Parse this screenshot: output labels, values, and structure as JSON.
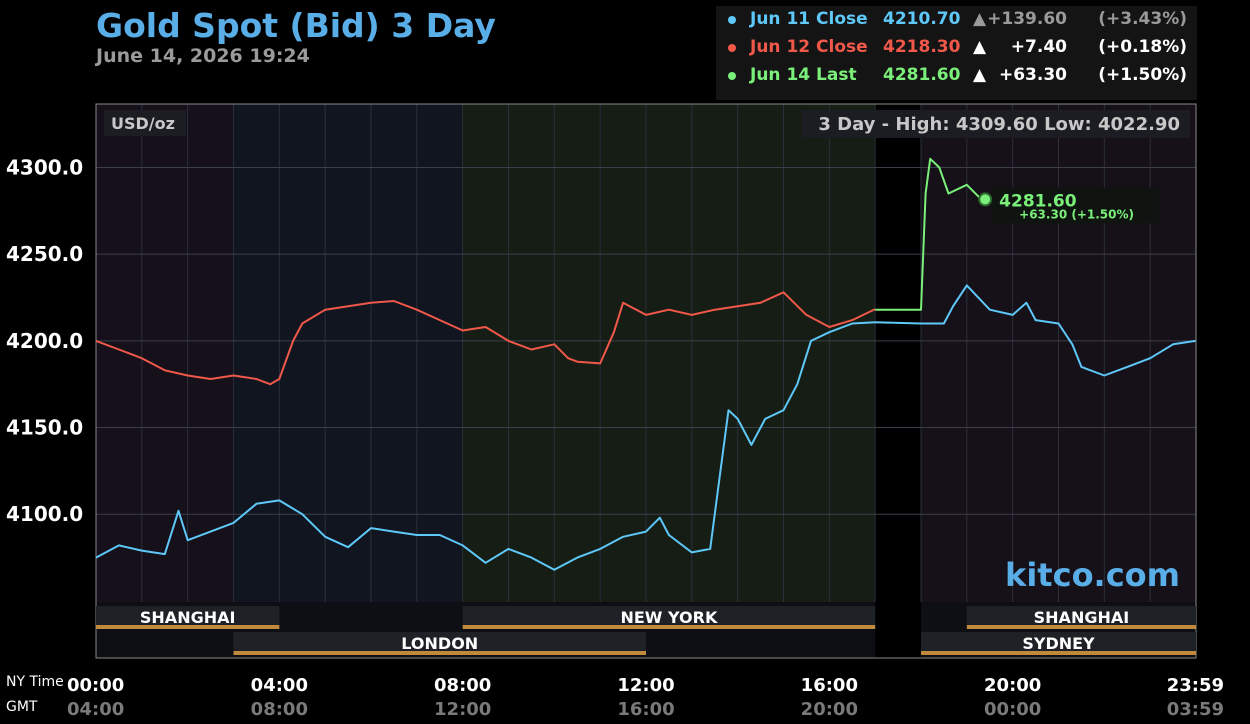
{
  "title": "Gold Spot (Bid) 3 Day",
  "timestamp": "June 14, 2026 19:24",
  "legend": [
    {
      "label": "Jun 11 Close",
      "value": "4210.70",
      "arrow": "▲",
      "change": "+139.60",
      "pct": "(+3.43%)",
      "color": "#5ec8f8",
      "change_color": "#9a9a9a"
    },
    {
      "label": "Jun 12 Close",
      "value": "4218.30",
      "arrow": "▲",
      "change": "+7.40",
      "pct": "(+0.18%)",
      "color": "#f0584a",
      "change_color": "#ffffff"
    },
    {
      "label": "Jun 14 Last",
      "value": "4281.60",
      "arrow": "▲",
      "change": "+63.30",
      "pct": "(+1.50%)",
      "color": "#7af07a",
      "change_color": "#ffffff"
    }
  ],
  "unit_label": "USD/oz",
  "range_label": "3 Day - High: 4309.60  Low: 4022.90",
  "brand": "kitco.com",
  "last_callout": {
    "value": "4281.60",
    "change": "+63.30 (+1.50%)"
  },
  "x_axis": {
    "row_labels": [
      "NY Time",
      "GMT"
    ],
    "ny_ticks": [
      "00:00",
      "04:00",
      "08:00",
      "12:00",
      "16:00",
      "20:00",
      "23:59"
    ],
    "gmt_ticks": [
      "04:00",
      "08:00",
      "12:00",
      "16:00",
      "20:00",
      "00:00",
      "03:59"
    ]
  },
  "sessions": [
    {
      "name": "SHANGHAI",
      "start": 0,
      "end": 4,
      "row": 1
    },
    {
      "name": "LONDON",
      "start": 3,
      "end": 12,
      "row": 2
    },
    {
      "name": "NEW YORK",
      "start": 8,
      "end": 17,
      "row": 1
    },
    {
      "name": "SHANGHAI",
      "start": 19,
      "end": 24,
      "row": 1
    },
    {
      "name": "SYDNEY",
      "start": 18,
      "end": 24,
      "row": 2
    }
  ],
  "chart_data": {
    "type": "line",
    "title": "Gold Spot (Bid) 3 Day",
    "xlabel": "NY Time",
    "ylabel": "USD/oz",
    "xlim": [
      0,
      24
    ],
    "ylim": [
      4050,
      4335
    ],
    "y_ticks": [
      4100,
      4150,
      4200,
      4250,
      4300
    ],
    "grid": true,
    "legend_position": "top-right",
    "series": [
      {
        "name": "Jun 11 Close",
        "color": "#5ec8f8",
        "x": [
          0.0,
          0.5,
          1.0,
          1.5,
          1.8,
          2.0,
          2.5,
          3.0,
          3.5,
          4.0,
          4.5,
          5.0,
          5.5,
          6.0,
          6.5,
          7.0,
          7.5,
          8.0,
          8.5,
          9.0,
          9.5,
          10.0,
          10.5,
          11.0,
          11.5,
          12.0,
          12.3,
          12.5,
          13.0,
          13.4,
          13.6,
          13.8,
          14.0,
          14.3,
          14.6,
          15.0,
          15.3,
          15.6,
          16.0,
          16.5,
          17.0,
          18.0,
          18.5,
          18.7,
          19.0,
          19.5,
          20.0,
          20.3,
          20.5,
          21.0,
          21.3,
          21.5,
          22.0,
          22.5,
          23.0,
          23.5,
          23.99
        ],
        "values": [
          4075,
          4082,
          4079,
          4077,
          4102,
          4085,
          4090,
          4095,
          4106,
          4108,
          4100,
          4087,
          4081,
          4092,
          4090,
          4088,
          4088,
          4082,
          4072,
          4080,
          4075,
          4068,
          4075,
          4080,
          4087,
          4090,
          4098,
          4088,
          4078,
          4080,
          4120,
          4160,
          4155,
          4140,
          4155,
          4160,
          4175,
          4200,
          4205,
          4210,
          4210.7,
          4210,
          4210,
          4220,
          4232,
          4218,
          4215,
          4222,
          4212,
          4210,
          4198,
          4185,
          4180,
          4185,
          4190,
          4198,
          4200
        ]
      },
      {
        "name": "Jun 12 Close",
        "color": "#f0584a",
        "x": [
          0.0,
          0.5,
          1.0,
          1.5,
          2.0,
          2.5,
          3.0,
          3.5,
          3.8,
          4.0,
          4.3,
          4.5,
          5.0,
          5.5,
          6.0,
          6.5,
          7.0,
          7.5,
          8.0,
          8.5,
          9.0,
          9.5,
          10.0,
          10.3,
          10.5,
          11.0,
          11.3,
          11.5,
          12.0,
          12.5,
          13.0,
          13.5,
          14.0,
          14.5,
          15.0,
          15.5,
          16.0,
          16.5,
          17.0
        ],
        "values": [
          4200,
          4195,
          4190,
          4183,
          4180,
          4178,
          4180,
          4178,
          4175,
          4178,
          4200,
          4210,
          4218,
          4220,
          4222,
          4223,
          4218,
          4212,
          4206,
          4208,
          4200,
          4195,
          4198,
          4190,
          4188,
          4187,
          4205,
          4222,
          4215,
          4218,
          4215,
          4218,
          4220,
          4222,
          4228,
          4215,
          4208,
          4212,
          4218.3
        ]
      },
      {
        "name": "Jun 14 Last",
        "color": "#7af07a",
        "x": [
          17.0,
          18.0,
          18.1,
          18.2,
          18.4,
          18.6,
          19.0,
          19.3,
          19.4
        ],
        "values": [
          4218,
          4218,
          4285,
          4305,
          4300,
          4285,
          4290,
          4282,
          4281.6
        ]
      }
    ]
  }
}
